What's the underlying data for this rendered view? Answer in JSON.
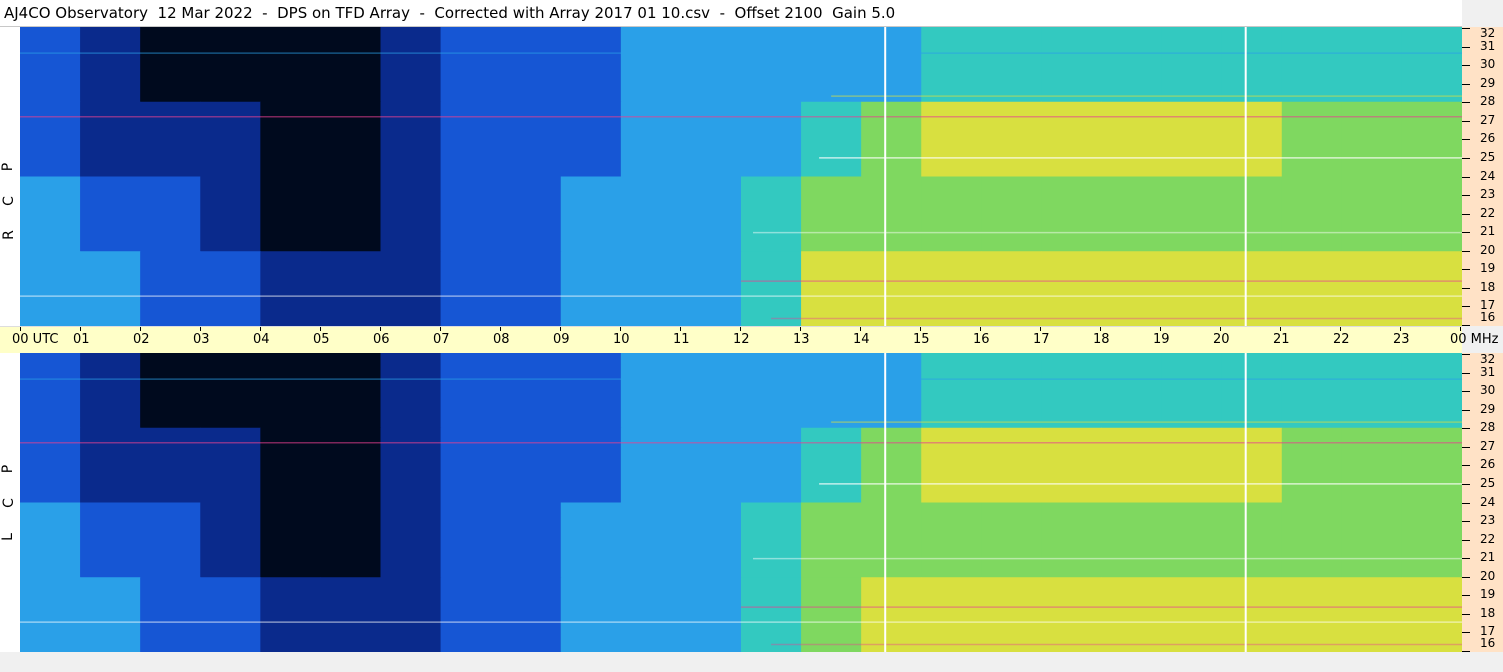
{
  "title": "AJ4CO Observatory  12 Mar 2022  -  DPS on TFD Array  -  Corrected with Array 2017 01 10.csv  -  Offset 2100  Gain 5.0",
  "panels": [
    {
      "id": "rcp",
      "letters": [
        "P",
        "C",
        "R"
      ]
    },
    {
      "id": "lcp",
      "letters": [
        "P",
        "C",
        "L"
      ]
    }
  ],
  "time_axis": {
    "labels": [
      "00 UTC",
      "01",
      "02",
      "03",
      "04",
      "05",
      "06",
      "07",
      "08",
      "09",
      "10",
      "11",
      "12",
      "13",
      "14",
      "15",
      "16",
      "17",
      "18",
      "19",
      "20",
      "21",
      "22",
      "23",
      "00 MHz"
    ]
  },
  "freq_axis": {
    "labels": [
      "32",
      "31",
      "30",
      "29",
      "28",
      "27",
      "26",
      "25",
      "24",
      "23",
      "22",
      "21",
      "20",
      "19",
      "18",
      "17",
      "16"
    ]
  },
  "colors": {
    "dark": "#000a1e",
    "deep_blue": "#0a2a8c",
    "blue": "#1656d4",
    "light_blue": "#2aa0e8",
    "cyan": "#33c9c0",
    "green": "#7fd860",
    "yellow": "#d8e040",
    "hot": "#e84090",
    "time_axis_bg": "#ffffc8",
    "freq_axis_bg": "#ffe2c6"
  },
  "chart_data": [
    {
      "type": "heatmap",
      "title": "AJ4CO Observatory  12 Mar 2022  -  DPS on TFD Array  -  Corrected with Array 2017 01 10.csv  -  Offset 2100  Gain 5.0",
      "panel": "RCP",
      "xlabel": "UTC",
      "ylabel": "MHz",
      "xlim": [
        0,
        24
      ],
      "ylim": [
        16,
        32
      ],
      "x_ticks": [
        "00",
        "01",
        "02",
        "03",
        "04",
        "05",
        "06",
        "07",
        "08",
        "09",
        "10",
        "11",
        "12",
        "13",
        "14",
        "15",
        "16",
        "17",
        "18",
        "19",
        "20",
        "21",
        "22",
        "23",
        "00"
      ],
      "y_ticks": [
        32,
        31,
        30,
        29,
        28,
        27,
        26,
        25,
        24,
        23,
        22,
        21,
        20,
        19,
        18,
        17,
        16
      ],
      "time_bins_hours": [
        0,
        1,
        2,
        3,
        4,
        5,
        6,
        7,
        8,
        9,
        10,
        11,
        12,
        13,
        14,
        15,
        16,
        17,
        18,
        19,
        20,
        21,
        22,
        23
      ],
      "freq_bands_mhz": [
        [
          28,
          32
        ],
        [
          24,
          28
        ],
        [
          20,
          24
        ],
        [
          16,
          20
        ]
      ],
      "intensity_levels": [
        [
          2,
          1,
          0,
          0,
          0,
          0,
          1,
          2,
          2,
          2,
          3,
          3,
          3,
          3,
          3,
          4,
          4,
          4,
          4,
          4,
          4,
          4,
          4,
          4
        ],
        [
          2,
          1,
          1,
          1,
          0,
          0,
          1,
          2,
          2,
          2,
          3,
          3,
          3,
          4,
          5,
          6,
          6,
          6,
          6,
          6,
          6,
          5,
          5,
          5
        ],
        [
          3,
          2,
          2,
          1,
          0,
          0,
          1,
          2,
          2,
          3,
          3,
          3,
          4,
          5,
          5,
          5,
          5,
          5,
          5,
          5,
          5,
          5,
          5,
          5
        ],
        [
          3,
          3,
          2,
          2,
          1,
          1,
          1,
          2,
          2,
          3,
          3,
          3,
          4,
          6,
          6,
          6,
          6,
          6,
          6,
          6,
          6,
          6,
          6,
          6
        ]
      ],
      "vertical_markers_utc": [
        14.4,
        20.4
      ]
    },
    {
      "type": "heatmap",
      "panel": "LCP",
      "xlabel": "UTC",
      "ylabel": "MHz",
      "xlim": [
        0,
        24
      ],
      "ylim": [
        16,
        32
      ],
      "x_ticks": [
        "00",
        "01",
        "02",
        "03",
        "04",
        "05",
        "06",
        "07",
        "08",
        "09",
        "10",
        "11",
        "12",
        "13",
        "14",
        "15",
        "16",
        "17",
        "18",
        "19",
        "20",
        "21",
        "22",
        "23",
        "00"
      ],
      "y_ticks": [
        32,
        31,
        30,
        29,
        28,
        27,
        26,
        25,
        24,
        23,
        22,
        21,
        20,
        19,
        18,
        17,
        16
      ],
      "time_bins_hours": [
        0,
        1,
        2,
        3,
        4,
        5,
        6,
        7,
        8,
        9,
        10,
        11,
        12,
        13,
        14,
        15,
        16,
        17,
        18,
        19,
        20,
        21,
        22,
        23
      ],
      "freq_bands_mhz": [
        [
          28,
          32
        ],
        [
          24,
          28
        ],
        [
          20,
          24
        ],
        [
          16,
          20
        ]
      ],
      "intensity_levels": [
        [
          2,
          1,
          0,
          0,
          0,
          0,
          1,
          2,
          2,
          2,
          3,
          3,
          3,
          3,
          3,
          4,
          4,
          4,
          4,
          4,
          4,
          4,
          4,
          4
        ],
        [
          2,
          1,
          1,
          1,
          0,
          0,
          1,
          2,
          2,
          2,
          3,
          3,
          3,
          4,
          5,
          6,
          6,
          6,
          6,
          6,
          6,
          5,
          5,
          5
        ],
        [
          3,
          2,
          2,
          1,
          0,
          0,
          1,
          2,
          2,
          3,
          3,
          3,
          4,
          5,
          5,
          5,
          5,
          5,
          5,
          5,
          5,
          5,
          5,
          5
        ],
        [
          3,
          3,
          2,
          2,
          1,
          1,
          1,
          2,
          2,
          3,
          3,
          3,
          4,
          5,
          6,
          6,
          6,
          6,
          6,
          6,
          6,
          6,
          6,
          6
        ]
      ],
      "vertical_markers_utc": [
        14.4,
        20.4
      ]
    }
  ]
}
